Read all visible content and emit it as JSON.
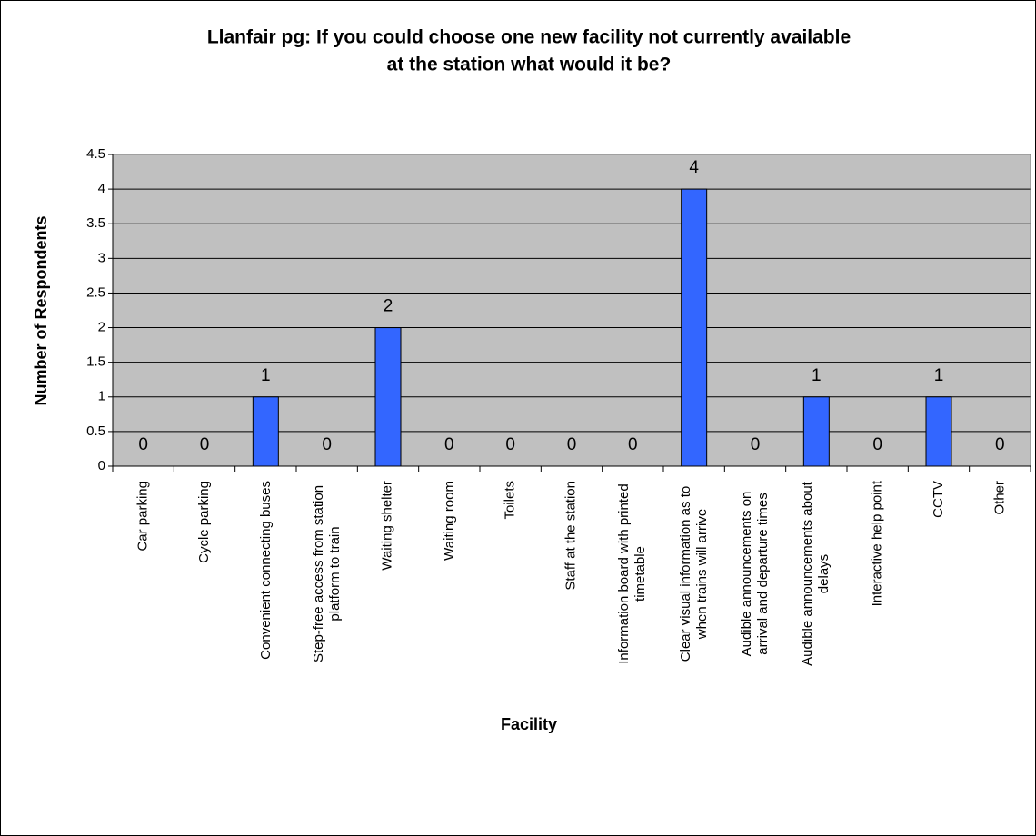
{
  "chart_data": {
    "type": "bar",
    "title": [
      "Llanfair pg: If you could choose one new facility not currently available",
      "at the station what would it be?"
    ],
    "x_label": "Facility",
    "y_label": "Number of Respondents",
    "categories": [
      "Car parking",
      "Cycle parking",
      "Convenient connecting buses",
      "Step-free access from station platform to train",
      "Waiting shelter",
      "Waiting room",
      "Toilets",
      "Staff at the station",
      "Information board with printed timetable",
      "Clear visual information as to when trains will arrive",
      "Audible announcements on arrival and departure times",
      "Audible announcements about delays",
      "Interactive help point",
      "CCTV",
      "Other"
    ],
    "values": [
      0,
      0,
      1,
      0,
      2,
      0,
      0,
      0,
      0,
      4,
      0,
      1,
      0,
      1,
      0
    ],
    "color": "#3366ff",
    "ylim": [
      0,
      4.5
    ],
    "yticks": [
      0,
      0.5,
      1,
      1.5,
      2,
      2.5,
      3,
      3.5,
      4,
      4.5
    ],
    "grid": true
  }
}
